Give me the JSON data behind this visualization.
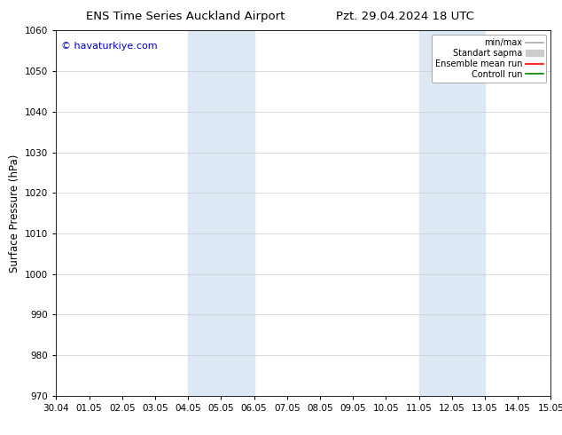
{
  "title_left": "ENS Time Series Auckland Airport",
  "title_right": "Pzt. 29.04.2024 18 UTC",
  "ylabel": "Surface Pressure (hPa)",
  "ylim": [
    970,
    1060
  ],
  "yticks": [
    970,
    980,
    990,
    1000,
    1010,
    1020,
    1030,
    1040,
    1050,
    1060
  ],
  "xtick_labels": [
    "30.04",
    "01.05",
    "02.05",
    "03.05",
    "04.05",
    "05.05",
    "06.05",
    "07.05",
    "08.05",
    "09.05",
    "10.05",
    "11.05",
    "12.05",
    "13.05",
    "14.05",
    "15.05"
  ],
  "watermark": "© havaturkiye.com",
  "watermark_color": "#0000cc",
  "shaded_bands": [
    {
      "xstart": 4,
      "xend": 6,
      "color": "#dce9f5"
    },
    {
      "xstart": 11,
      "xend": 13,
      "color": "#dce9f5"
    }
  ],
  "legend_items": [
    {
      "label": "min/max",
      "color": "#aaaaaa",
      "lw": 1.2,
      "ls": "-",
      "type": "line"
    },
    {
      "label": "Standart sapma",
      "color": "#cccccc",
      "lw": 8,
      "ls": "-",
      "type": "patch"
    },
    {
      "label": "Ensemble mean run",
      "color": "#ff0000",
      "lw": 1.2,
      "ls": "-",
      "type": "line"
    },
    {
      "label": "Controll run",
      "color": "#008000",
      "lw": 1.2,
      "ls": "-",
      "type": "line"
    }
  ],
  "background_color": "#ffffff",
  "grid_color": "#cccccc",
  "tick_label_fontsize": 7.5,
  "title_fontsize": 9.5,
  "ylabel_fontsize": 8.5,
  "legend_fontsize": 7
}
